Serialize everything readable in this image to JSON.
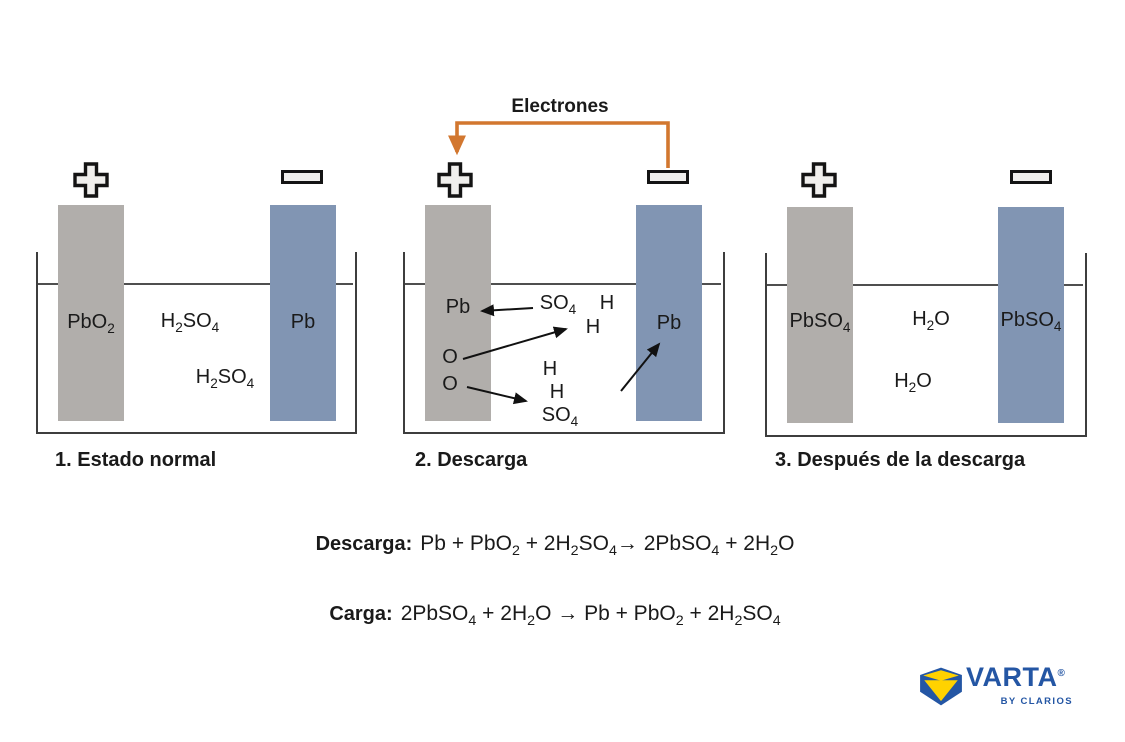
{
  "electron_flow_label": "Electrones",
  "cells": [
    {
      "caption": "1. Estado normal",
      "positive_electrode": "PbO2",
      "negative_electrode": "Pb",
      "electrolyte_labels": [
        "H2SO4",
        "H2SO4"
      ]
    },
    {
      "caption": "2. Descarga",
      "positive_electrode_labels": {
        "pb": "Pb",
        "o_upper": "O",
        "o_lower": "O"
      },
      "negative_electrode": "Pb",
      "ion_labels": {
        "so4_top": "SO4",
        "h_top": "H",
        "h_upper": "H",
        "h_mid": "H",
        "h_low": "H",
        "so4_bottom": "SO4"
      }
    },
    {
      "caption": "3. Después de la descarga",
      "positive_electrode": "PbSO4",
      "negative_electrode": "PbSO4",
      "electrolyte_labels": [
        "H2O",
        "H2O"
      ]
    }
  ],
  "equations": [
    {
      "label": "Descarga:",
      "formula": "Pb + PbO2 + 2H2SO4→ 2PbSO4 + 2H2O"
    },
    {
      "label": "Carga:",
      "formula": "2PbSO4 + 2H2O → Pb + PbO2 + 2H2SO4"
    }
  ],
  "logo": {
    "brand": "VARTA",
    "registered": "®",
    "byline": "BY CLARIOS"
  },
  "colors": {
    "wire_orange": "#d2772f",
    "electrode_positive_gray": "#b1aeab",
    "electrode_negative_blue": "#8195b3",
    "brand_blue": "#2456a4",
    "brand_yellow": "#ffd200"
  }
}
